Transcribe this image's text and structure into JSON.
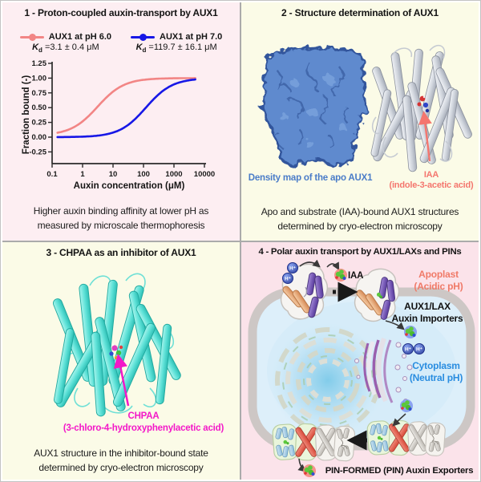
{
  "figure": {
    "panel1": {
      "title": "1 - Proton-coupled auxin-transport by AUX1",
      "legend": [
        {
          "kd_k": "K",
          "kd_sub": "d",
          "kd_rest": "=3.1 ± 0.4 μM"
        },
        {
          "kd_k": "K",
          "kd_sub": "d",
          "kd_rest": "=119.7 ± 16.1 μM"
        }
      ],
      "caption1": "Higher auxin binding affinity at lower pH as",
      "caption2": "measured by microscale thermophoresis"
    },
    "panel2": {
      "title": "2 - Structure determination of AUX1",
      "density_label": "Density map of the apo AUX1",
      "ligand_label1": "IAA",
      "ligand_label2": "(indole-3-acetic acid)",
      "caption1": "Apo and substrate (IAA)-bound AUX1 structures",
      "caption2": "determined by cryo-electron microscopy"
    },
    "panel3": {
      "title": "3 - CHPAA as an inhibitor of AUX1",
      "ligand_label1": "CHPAA",
      "ligand_label2": "(3-chloro-4-hydroxyphenylacetic acid)",
      "caption1": "AUX1 structure in the inhibitor-bound state",
      "caption2": "determined by cryo-electron microscopy"
    },
    "panel4": {
      "title": "4 - Polar auxin transport by AUX1/LAXs and PINs",
      "iaa_label": "IAA",
      "proton_label": "H⁺",
      "apoplast1": "Apoplast",
      "apoplast2": "(Acidic pH)",
      "importers1": "AUX1/LAX",
      "importers2": "Auxin Importers",
      "cytoplasm1": "Cytoplasm",
      "cytoplasm2": "(Neutral pH)",
      "exporters": "PIN-FORMED (PIN) Auxin Exporters"
    }
  },
  "colors": {
    "panel1_bg": "#fdeef2",
    "panel2_bg": "#fbfbe7",
    "panel4_bg": "#fbe3ea",
    "ph6_curve": "#f28585",
    "ph7_curve": "#1717e6",
    "density_blue": "#5e8ace",
    "cyan_structure": "#4fdcd2",
    "magenta_label": "#f318c8",
    "salmon_label": "#f4766e",
    "cytoplasm_blue": "#2a8de0"
  },
  "chart_data": {
    "type": "line",
    "title": "",
    "xlabel": "Auxin concentration (μM)",
    "ylabel": "Fraction bound (-)",
    "x_scale": "log",
    "xlim": [
      0.1,
      10000
    ],
    "ylim": [
      -0.45,
      1.3
    ],
    "grid": false,
    "legend_position": "top",
    "x_tick_labels": [
      "0.1",
      "1",
      "10",
      "100",
      "1000",
      "10000"
    ],
    "y_ticks": [
      1.25,
      1.0,
      0.75,
      0.5,
      0.25,
      0.0,
      -0.25
    ],
    "y_tick_labels": [
      "1.25",
      "1.00",
      "0.75",
      "0.50",
      "0.25",
      "0.00",
      "-0.25"
    ],
    "series": [
      {
        "name": "AUX1 at pH 6.0",
        "color": "#f28585",
        "model": "one-site binding isotherm",
        "kd_uM": 3.1,
        "kd_err_uM": 0.4,
        "bottom": 0.03,
        "top": 1.0,
        "x_range_uM": [
          0.15,
          5000
        ]
      },
      {
        "name": "AUX1 at pH 7.0",
        "color": "#1717e6",
        "model": "one-site binding isotherm",
        "kd_uM": 119.7,
        "kd_err_uM": 16.1,
        "bottom": 0.0,
        "top": 1.0,
        "x_range_uM": [
          0.15,
          5000
        ]
      }
    ]
  }
}
